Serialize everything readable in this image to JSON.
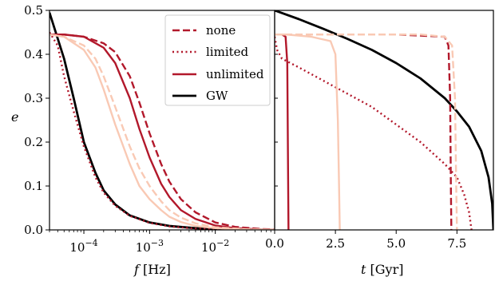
{
  "figure": {
    "y_label": "e",
    "y_ticks": [
      "0.0",
      "0.1",
      "0.2",
      "0.3",
      "0.4",
      "0.5"
    ],
    "left_x_label_var": "f",
    "left_x_label_unit": " [Hz]",
    "left_x_ticks": [
      {
        "base": "10",
        "exp": "−4"
      },
      {
        "base": "10",
        "exp": "−3"
      },
      {
        "base": "10",
        "exp": "−2"
      }
    ],
    "right_x_label_var": "t",
    "right_x_label_unit": " [Gyr]",
    "right_x_ticks": [
      "0.0",
      "2.5",
      "5.0",
      "7.5"
    ]
  },
  "legend": [
    {
      "label": "none",
      "style": "dashed",
      "color": "#b2182b"
    },
    {
      "label": "limited",
      "style": "dotted",
      "color": "#b2182b"
    },
    {
      "label": "unlimited",
      "style": "solid",
      "color": "#b2182b"
    },
    {
      "label": "GW",
      "style": "solid",
      "color": "#000000"
    }
  ],
  "colors": {
    "dark_red": "#b2182b",
    "light_red": "#f9c9b4",
    "black": "#000000"
  },
  "chart_data": [
    {
      "type": "line",
      "xscale": "log",
      "xlim": [
        3e-05,
        0.08
      ],
      "ylim": [
        0,
        0.5
      ],
      "xlabel": "f [Hz]",
      "ylabel": "e",
      "series": [
        {
          "name": "GW",
          "color": "#000000",
          "style": "solid",
          "x": [
            3e-05,
            5e-05,
            7e-05,
            0.0001,
            0.00015,
            0.0002,
            0.0003,
            0.0005,
            0.001,
            0.002,
            0.005,
            0.01,
            0.03,
            0.08
          ],
          "y": [
            0.495,
            0.39,
            0.3,
            0.2,
            0.13,
            0.09,
            0.058,
            0.033,
            0.017,
            0.009,
            0.004,
            0.002,
            0.0007,
            0.0002
          ]
        },
        {
          "color": "#b2182b",
          "style": "dotted",
          "x": [
            3e-05,
            4e-05,
            5e-05,
            7e-05,
            0.0001,
            0.00015,
            0.0002,
            0.0003,
            0.0005,
            0.001,
            0.002,
            0.005,
            0.01,
            0.03,
            0.08
          ],
          "y": [
            0.45,
            0.42,
            0.35,
            0.27,
            0.19,
            0.12,
            0.085,
            0.055,
            0.032,
            0.016,
            0.008,
            0.003,
            0.0015,
            0.0005,
            0.0002
          ]
        },
        {
          "color": "#b2182b",
          "style": "dashed",
          "x": [
            3e-05,
            5e-05,
            0.0001,
            0.0002,
            0.0003,
            0.0005,
            0.0007,
            0.001,
            0.0015,
            0.002,
            0.003,
            0.005,
            0.01,
            0.02,
            0.05,
            0.08
          ],
          "y": [
            0.445,
            0.445,
            0.44,
            0.425,
            0.405,
            0.35,
            0.29,
            0.22,
            0.15,
            0.11,
            0.07,
            0.04,
            0.017,
            0.007,
            0.002,
            0.001
          ]
        },
        {
          "color": "#b2182b",
          "style": "solid",
          "x": [
            3e-05,
            5e-05,
            0.0001,
            0.0002,
            0.0003,
            0.0005,
            0.0007,
            0.001,
            0.0015,
            0.002,
            0.003,
            0.005,
            0.01,
            0.02,
            0.05,
            0.08
          ],
          "y": [
            0.445,
            0.445,
            0.44,
            0.415,
            0.38,
            0.3,
            0.23,
            0.165,
            0.105,
            0.075,
            0.045,
            0.025,
            0.01,
            0.004,
            0.001,
            0.0005
          ]
        },
        {
          "color": "#f9c9b4",
          "style": "dashed",
          "x": [
            3e-05,
            5e-05,
            0.0001,
            0.00015,
            0.0002,
            0.0003,
            0.0005,
            0.0007,
            0.001,
            0.0015,
            0.002,
            0.003,
            0.005,
            0.01,
            0.03,
            0.08
          ],
          "y": [
            0.445,
            0.44,
            0.42,
            0.39,
            0.35,
            0.28,
            0.19,
            0.14,
            0.1,
            0.065,
            0.045,
            0.028,
            0.015,
            0.006,
            0.0015,
            0.0005
          ]
        },
        {
          "color": "#f9c9b4",
          "style": "solid",
          "x": [
            3e-05,
            5e-05,
            0.0001,
            0.00015,
            0.0002,
            0.0003,
            0.0005,
            0.0007,
            0.001,
            0.0015,
            0.002,
            0.003,
            0.005,
            0.01,
            0.03,
            0.08
          ],
          "y": [
            0.445,
            0.44,
            0.41,
            0.37,
            0.32,
            0.24,
            0.15,
            0.1,
            0.07,
            0.045,
            0.03,
            0.018,
            0.009,
            0.004,
            0.001,
            0.0003
          ]
        }
      ]
    },
    {
      "type": "line",
      "xscale": "linear",
      "xlim": [
        0,
        9
      ],
      "ylim": [
        0,
        0.5
      ],
      "xlabel": "t [Gyr]",
      "series": [
        {
          "name": "GW",
          "color": "#000000",
          "style": "solid",
          "x": [
            0,
            1,
            2,
            3,
            4,
            5,
            6,
            7,
            7.5,
            8,
            8.5,
            8.8,
            8.95,
            9.0
          ],
          "y": [
            0.5,
            0.48,
            0.458,
            0.435,
            0.41,
            0.38,
            0.345,
            0.3,
            0.27,
            0.235,
            0.18,
            0.12,
            0.06,
            0.0
          ]
        },
        {
          "color": "#b2182b",
          "style": "dotted",
          "x": [
            0,
            0.1,
            0.3,
            1,
            2,
            3,
            4,
            5,
            6,
            7,
            7.5,
            7.8,
            8.0,
            8.1
          ],
          "y": [
            0.44,
            0.41,
            0.39,
            0.37,
            0.34,
            0.31,
            0.28,
            0.24,
            0.2,
            0.15,
            0.12,
            0.08,
            0.04,
            0.0
          ]
        },
        {
          "color": "#b2182b",
          "style": "dashed",
          "x": [
            0,
            0.3,
            1,
            3,
            5,
            7,
            7.15,
            7.22,
            7.25,
            7.27
          ],
          "y": [
            0.445,
            0.445,
            0.445,
            0.445,
            0.445,
            0.44,
            0.42,
            0.3,
            0.1,
            0.0
          ]
        },
        {
          "color": "#b2182b",
          "style": "solid",
          "x": [
            0,
            0.3,
            0.45,
            0.52,
            0.55,
            0.57
          ],
          "y": [
            0.445,
            0.445,
            0.44,
            0.38,
            0.15,
            0.0
          ]
        },
        {
          "color": "#f9c9b4",
          "style": "dashed",
          "x": [
            0,
            0.5,
            2,
            4,
            6,
            7,
            7.3,
            7.42,
            7.47,
            7.5
          ],
          "y": [
            0.445,
            0.445,
            0.445,
            0.445,
            0.445,
            0.44,
            0.42,
            0.3,
            0.1,
            0.0
          ]
        },
        {
          "color": "#f9c9b4",
          "style": "solid",
          "x": [
            0,
            0.5,
            1.5,
            2.3,
            2.5,
            2.6,
            2.65,
            2.68
          ],
          "y": [
            0.445,
            0.445,
            0.44,
            0.43,
            0.4,
            0.25,
            0.1,
            0.0
          ]
        }
      ]
    }
  ]
}
